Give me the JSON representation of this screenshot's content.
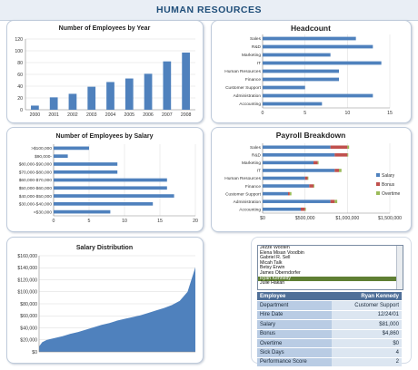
{
  "page": {
    "title": "HUMAN RESOURCES"
  },
  "chart_data": [
    {
      "id": "employees_by_year",
      "type": "bar",
      "title": "Number of Employees by Year",
      "categories": [
        "2000",
        "2001",
        "2002",
        "2003",
        "2004",
        "2005",
        "2006",
        "2007",
        "2008"
      ],
      "values": [
        7,
        21,
        27,
        39,
        47,
        53,
        61,
        82,
        97
      ],
      "ylim": [
        0,
        120
      ],
      "yticks": [
        0,
        20,
        40,
        60,
        80,
        100,
        120
      ],
      "grid": true,
      "color": "#4f81bd"
    },
    {
      "id": "headcount",
      "type": "bar",
      "orientation": "horizontal",
      "title": "Headcount",
      "categories": [
        "Sales",
        "R&D",
        "Marketing",
        "IT",
        "Human Resources",
        "Finance",
        "Customer Support",
        "Administration",
        "Accounting"
      ],
      "values": [
        11,
        13,
        8,
        14,
        9,
        9,
        5,
        13,
        7
      ],
      "xlim": [
        0,
        15
      ],
      "xticks": [
        0,
        5,
        10,
        15
      ],
      "grid": true,
      "color": "#4f81bd"
    },
    {
      "id": "employees_by_salary",
      "type": "bar",
      "orientation": "horizontal",
      "title": "Number of Employees by Salary",
      "categories": [
        ">$100,000",
        "$90,000-",
        "$80,000-$90,000",
        "$70,000-$80,000",
        "$60,000-$70,000",
        "$50,000-$60,000",
        "$40,000-$50,000",
        "$30,000-$40,000",
        "<$30,000"
      ],
      "values": [
        5,
        2,
        9,
        9,
        16,
        16,
        17,
        14,
        8
      ],
      "xlim": [
        0,
        20
      ],
      "xticks": [
        0,
        5,
        10,
        15,
        20
      ],
      "grid": true,
      "color": "#4f81bd"
    },
    {
      "id": "payroll_breakdown",
      "type": "bar",
      "orientation": "horizontal",
      "stacked": true,
      "title": "Payroll Breakdown",
      "categories": [
        "Sales",
        "R&D",
        "Marketing",
        "IT",
        "Human Resources",
        "Finance",
        "Customer Support",
        "Administration",
        "Accounting"
      ],
      "series": [
        {
          "name": "Salary",
          "color": "#4f81bd",
          "values": [
            800000,
            850000,
            600000,
            850000,
            500000,
            550000,
            300000,
            800000,
            450000
          ]
        },
        {
          "name": "Bonus",
          "color": "#c0504d",
          "values": [
            200000,
            150000,
            50000,
            50000,
            30000,
            50000,
            20000,
            50000,
            50000
          ]
        },
        {
          "name": "Overtime",
          "color": "#9bbb59",
          "values": [
            20000,
            10000,
            10000,
            30000,
            10000,
            10000,
            20000,
            30000,
            10000
          ]
        }
      ],
      "xlim": [
        0,
        1500000
      ],
      "xticks": [
        0,
        500000,
        1000000,
        1500000
      ],
      "xtick_labels": [
        "$0",
        "$500,000",
        "$1,000,000",
        "$1,500,000"
      ],
      "legend": "right",
      "grid": true
    },
    {
      "id": "salary_distribution",
      "type": "area",
      "title": "Salary Distribution",
      "x": [
        0,
        2,
        5,
        10,
        15,
        20,
        25,
        30,
        35,
        40,
        45,
        50,
        55,
        60,
        65,
        70,
        75,
        80,
        85,
        90,
        95,
        100
      ],
      "values": [
        9000,
        16000,
        20000,
        23000,
        26000,
        30000,
        33000,
        37000,
        41000,
        45000,
        48000,
        52000,
        55000,
        58000,
        61000,
        65000,
        69000,
        73000,
        78000,
        85000,
        100000,
        141000
      ],
      "ylim": [
        0,
        160000
      ],
      "yticks": [
        0,
        20000,
        40000,
        60000,
        80000,
        100000,
        120000,
        140000,
        160000
      ],
      "ytick_labels": [
        "$0",
        "$20,000",
        "$40,000",
        "$60,000",
        "$80,000",
        "$100,000",
        "$120,000",
        "$140,000",
        "$160,000"
      ],
      "grid": true,
      "color": "#4f81bd"
    }
  ],
  "employee_list": {
    "items": [
      "Jezze Wooten",
      "Elena Misan Voodbin",
      "Gabriel R. Sell",
      "Micah Talk",
      "Betsy Erwin",
      "James Oberndorfer",
      "Ryan Kennedy",
      "Julie Hakan"
    ],
    "selected_index": 6
  },
  "employee_details": {
    "header": {
      "label": "Employee",
      "value": "Ryan Kennedy"
    },
    "rows": [
      {
        "label": "Department",
        "value": "Customer Support"
      },
      {
        "label": "Hire Date",
        "value": "12/24/01"
      },
      {
        "label": "Salary",
        "value": "$81,000"
      },
      {
        "label": "Bonus",
        "value": "$4,860"
      },
      {
        "label": "Overtime",
        "value": "$0"
      },
      {
        "label": "Sick Days",
        "value": "4"
      },
      {
        "label": "Performance Score",
        "value": "2"
      }
    ]
  }
}
